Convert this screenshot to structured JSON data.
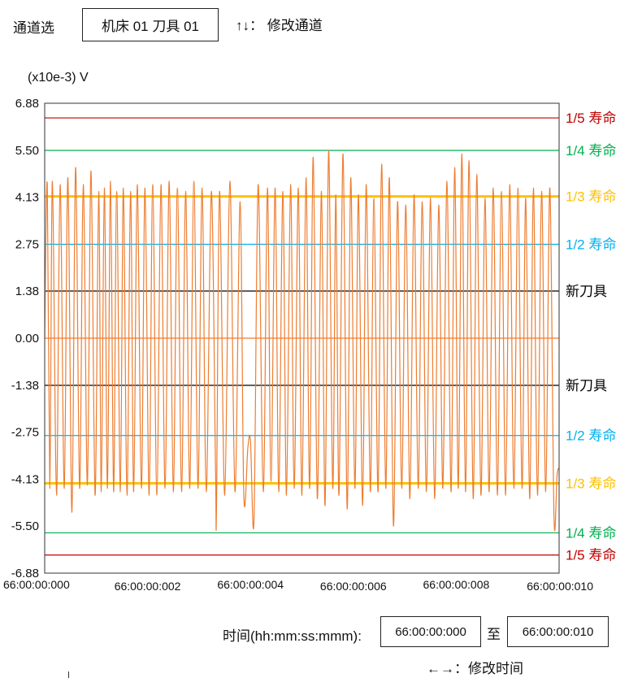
{
  "header": {
    "channel_label": "通道选",
    "channel_value": "机床 01 刀具 01",
    "channel_hint": "↑↓： 修改通道"
  },
  "footer": {
    "time_label": "时间(hh:mm:ss:mmm):",
    "start_time": "66:00:00:000",
    "to_label": "至",
    "end_time": "66:00:00:010",
    "time_hint": "←→：修改时间"
  },
  "colors": {
    "signal": "#ED7D31",
    "level_1_5": "#C00000",
    "level_1_4": "#00B050",
    "level_1_3": "#FFC000",
    "level_1_2": "#00B0F0",
    "level_new": "#000000"
  },
  "chart_data": {
    "type": "line",
    "ylabel": "(x10e-3) V",
    "ylim": [
      -6.88,
      6.88
    ],
    "yticks": [
      "6.88",
      "5.50",
      "4.13",
      "2.75",
      "1.38",
      "0.00",
      "-1.38",
      "-2.75",
      "-4.13",
      "-5.50",
      "-6.88"
    ],
    "xlim": [
      0,
      10
    ],
    "xticks": [
      {
        "value": 0,
        "label": "66:00:00:000"
      },
      {
        "value": 2,
        "label": "66:00:00:002"
      },
      {
        "value": 4,
        "label": "66:00:00:004"
      },
      {
        "value": 6,
        "label": "66:00:00:006"
      },
      {
        "value": 8,
        "label": "66:00:00:008"
      },
      {
        "value": 10,
        "label": "66:00:00:010"
      }
    ],
    "reference_lines": [
      {
        "label": "1/5 寿命",
        "value": 6.45,
        "color": "#C00000",
        "width": 1.2
      },
      {
        "label": "1/4 寿命",
        "value": 5.5,
        "color": "#00B050",
        "width": 1.2
      },
      {
        "label": "1/3 寿命",
        "value": 4.15,
        "color": "#FFC000",
        "width": 3
      },
      {
        "label": "1/2 寿命",
        "value": 2.75,
        "color": "#00B0F0",
        "width": 1.2
      },
      {
        "label": "新刀具",
        "value": 1.38,
        "color": "#000000",
        "width": 1.2
      },
      {
        "label": "新刀具",
        "value": -1.38,
        "color": "#000000",
        "width": 1.2
      },
      {
        "label": "1/2 寿命",
        "value": -2.85,
        "color": "#00B0F0",
        "width": 1.2
      },
      {
        "label": "1/3 寿命",
        "value": -4.25,
        "color": "#FFC000",
        "width": 3
      },
      {
        "label": "1/4 寿命",
        "value": -5.7,
        "color": "#00B050",
        "width": 1.2
      },
      {
        "label": "1/5 寿命",
        "value": -6.35,
        "color": "#C00000",
        "width": 1.2
      }
    ],
    "series": [
      {
        "values": [
          [
            0.0,
            0.0
          ],
          [
            0.05,
            4.5
          ],
          [
            0.1,
            -4.4
          ],
          [
            0.15,
            4.6
          ],
          [
            0.23,
            -4.6
          ],
          [
            0.3,
            4.5
          ],
          [
            0.38,
            -4.4
          ],
          [
            0.45,
            4.7
          ],
          [
            0.53,
            -5.1
          ],
          [
            0.6,
            5.0
          ],
          [
            0.68,
            -4.4
          ],
          [
            0.75,
            4.5
          ],
          [
            0.83,
            -4.3
          ],
          [
            0.9,
            4.9
          ],
          [
            0.98,
            -4.6
          ],
          [
            1.05,
            4.3
          ],
          [
            1.1,
            -4.5
          ],
          [
            1.16,
            4.4
          ],
          [
            1.22,
            -4.4
          ],
          [
            1.28,
            4.6
          ],
          [
            1.34,
            -4.5
          ],
          [
            1.4,
            4.3
          ],
          [
            1.47,
            -4.5
          ],
          [
            1.53,
            4.4
          ],
          [
            1.6,
            -4.6
          ],
          [
            1.67,
            4.3
          ],
          [
            1.73,
            -4.5
          ],
          [
            1.8,
            4.5
          ],
          [
            1.88,
            -4.4
          ],
          [
            1.95,
            4.4
          ],
          [
            2.03,
            -4.6
          ],
          [
            2.1,
            4.5
          ],
          [
            2.18,
            -4.6
          ],
          [
            2.26,
            4.5
          ],
          [
            2.34,
            -4.4
          ],
          [
            2.42,
            4.6
          ],
          [
            2.5,
            -4.5
          ],
          [
            2.58,
            4.4
          ],
          [
            2.66,
            -4.5
          ],
          [
            2.74,
            4.3
          ],
          [
            2.82,
            -4.4
          ],
          [
            2.9,
            4.6
          ],
          [
            2.98,
            -4.4
          ],
          [
            3.06,
            4.4
          ],
          [
            3.14,
            -4.5
          ],
          [
            3.24,
            4.3
          ],
          [
            3.32,
            -3.8
          ],
          [
            3.34,
            -5.0
          ],
          [
            3.4,
            4.3
          ],
          [
            3.5,
            -4.6
          ],
          [
            3.6,
            4.6
          ],
          [
            3.7,
            -4.5
          ],
          [
            3.8,
            4.0
          ],
          [
            3.87,
            -4.6
          ],
          [
            3.95,
            -3.2
          ],
          [
            4.0,
            -3.0
          ],
          [
            4.07,
            -5.3
          ],
          [
            4.15,
            4.5
          ],
          [
            4.25,
            -4.5
          ],
          [
            4.33,
            4.4
          ],
          [
            4.4,
            -4.2
          ],
          [
            4.48,
            4.4
          ],
          [
            4.55,
            -4.5
          ],
          [
            4.63,
            4.3
          ],
          [
            4.7,
            -4.6
          ],
          [
            4.78,
            4.5
          ],
          [
            4.85,
            -4.4
          ],
          [
            4.93,
            4.4
          ],
          [
            5.0,
            -4.6
          ],
          [
            5.08,
            4.7
          ],
          [
            5.15,
            -4.4
          ],
          [
            5.22,
            5.3
          ],
          [
            5.3,
            -4.7
          ],
          [
            5.38,
            4.3
          ],
          [
            5.45,
            -4.9
          ],
          [
            5.52,
            5.5
          ],
          [
            5.6,
            -4.4
          ],
          [
            5.66,
            4.2
          ],
          [
            5.72,
            -4.6
          ],
          [
            5.8,
            5.4
          ],
          [
            5.88,
            -5.0
          ],
          [
            5.95,
            4.7
          ],
          [
            6.03,
            -4.4
          ],
          [
            6.1,
            4.2
          ],
          [
            6.18,
            -4.9
          ],
          [
            6.25,
            4.5
          ],
          [
            6.33,
            -4.5
          ],
          [
            6.4,
            4.1
          ],
          [
            6.48,
            -4.5
          ],
          [
            6.55,
            5.1
          ],
          [
            6.63,
            -4.4
          ],
          [
            6.7,
            4.7
          ],
          [
            6.78,
            -5.5
          ],
          [
            6.86,
            4.0
          ],
          [
            6.94,
            -4.4
          ],
          [
            7.02,
            3.9
          ],
          [
            7.1,
            -4.7
          ],
          [
            7.18,
            4.2
          ],
          [
            7.26,
            -4.4
          ],
          [
            7.34,
            4.0
          ],
          [
            7.42,
            -4.5
          ],
          [
            7.5,
            4.1
          ],
          [
            7.58,
            -4.7
          ],
          [
            7.66,
            3.9
          ],
          [
            7.74,
            -4.4
          ],
          [
            7.82,
            4.6
          ],
          [
            7.9,
            -4.5
          ],
          [
            7.97,
            5.0
          ],
          [
            8.04,
            -4.4
          ],
          [
            8.11,
            5.4
          ],
          [
            8.18,
            -4.5
          ],
          [
            8.25,
            5.2
          ],
          [
            8.33,
            -4.7
          ],
          [
            8.4,
            4.8
          ],
          [
            8.48,
            -4.6
          ],
          [
            8.56,
            4.1
          ],
          [
            8.64,
            -4.5
          ],
          [
            8.72,
            4.4
          ],
          [
            8.8,
            -4.6
          ],
          [
            8.88,
            4.3
          ],
          [
            8.96,
            -4.6
          ],
          [
            9.04,
            4.5
          ],
          [
            9.12,
            -4.4
          ],
          [
            9.2,
            4.4
          ],
          [
            9.28,
            -4.4
          ],
          [
            9.35,
            4.1
          ],
          [
            9.43,
            -4.7
          ],
          [
            9.5,
            4.4
          ],
          [
            9.58,
            -4.6
          ],
          [
            9.66,
            4.3
          ],
          [
            9.74,
            -4.5
          ],
          [
            9.82,
            4.4
          ],
          [
            9.9,
            -5.2
          ],
          [
            9.96,
            -4.0
          ],
          [
            10.0,
            -3.8
          ]
        ]
      }
    ]
  }
}
